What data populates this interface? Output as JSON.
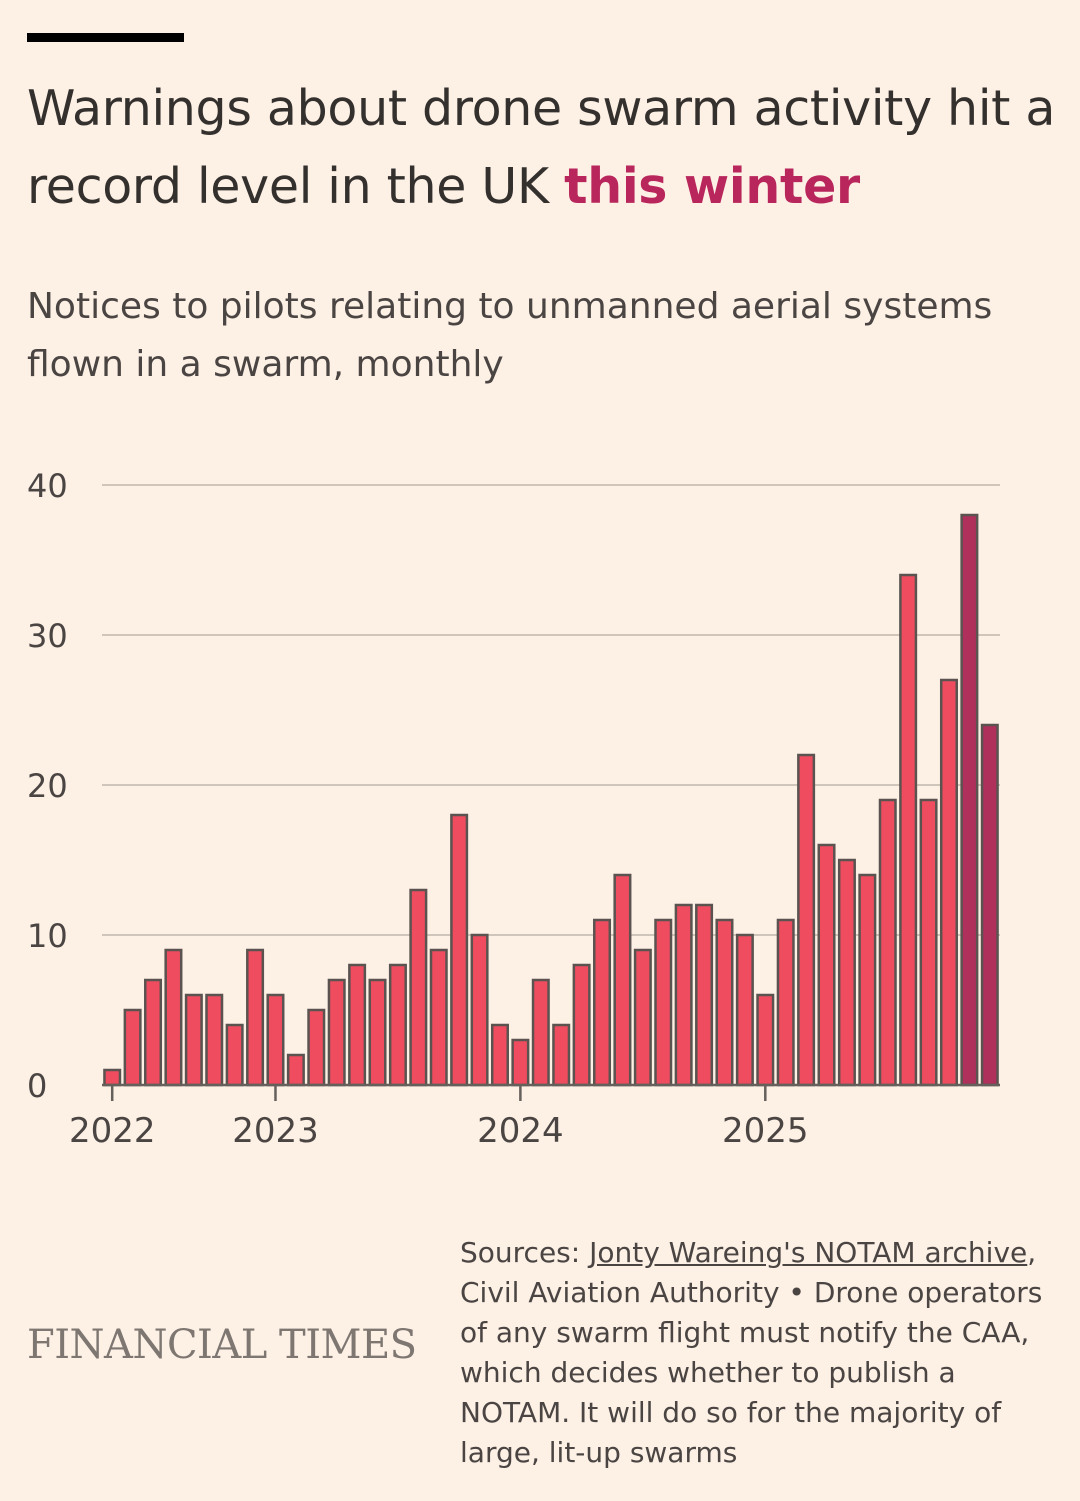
{
  "headline": {
    "text_before": "Warnings about drone swarm activity hit a record level in the UK ",
    "highlight": "this winter"
  },
  "subtitle": "Notices to pilots relating to unmanned aerial systems flown in a swarm, monthly",
  "colors": {
    "bar": "#f04c5f",
    "bar_highlight": "#b0305c",
    "bar_stroke": "#5a5350",
    "highlight_text": "#b8265c",
    "gridline": "#cfc5bb",
    "background": "#fdf0e5"
  },
  "chart_data": {
    "type": "bar",
    "title": "Notices to pilots relating to unmanned aerial systems flown in a swarm, monthly",
    "xlabel": "",
    "ylabel": "",
    "ylim": [
      0,
      40
    ],
    "yticks": [
      0,
      10,
      20,
      30,
      40
    ],
    "xticks": [
      {
        "label": "2022",
        "index": 0
      },
      {
        "label": "2023",
        "index": 8
      },
      {
        "label": "2024",
        "index": 20
      },
      {
        "label": "2025",
        "index": 32
      }
    ],
    "values": [
      1,
      5,
      7,
      9,
      6,
      6,
      4,
      9,
      6,
      2,
      5,
      7,
      8,
      7,
      8,
      13,
      9,
      18,
      10,
      4,
      3,
      7,
      4,
      8,
      11,
      14,
      9,
      11,
      12,
      12,
      11,
      10,
      6,
      11,
      22,
      16,
      15,
      14,
      19,
      34,
      19,
      27,
      38,
      24
    ],
    "highlight_indices": [
      42,
      43
    ]
  },
  "source": {
    "prefix": "Sources: ",
    "link_text": "Jonty Wareing's NOTAM archive",
    "rest": ", Civil Aviation Authority • Drone operators of any swarm flight must notify the CAA, which decides whether to publish a NOTAM. It will do so for the majority of large, lit-up swarms"
  },
  "brand": "FINANCIAL TIMES"
}
